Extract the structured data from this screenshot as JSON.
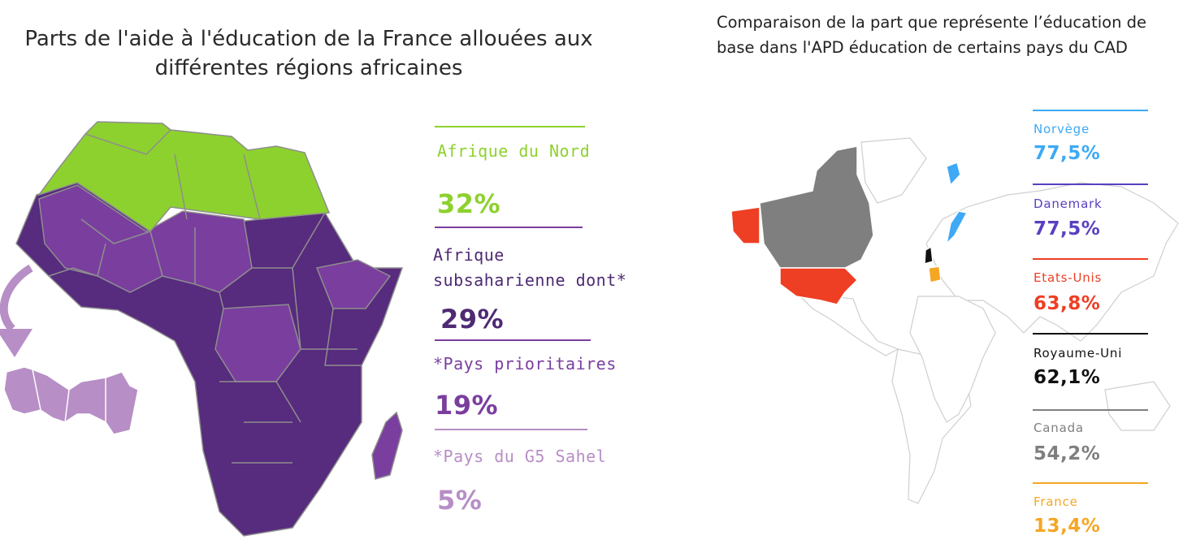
{
  "africa": {
    "title_line1": "Parts de l'aide à l'éducation de la France allouées aux",
    "title_line2": "différentes régions africaines",
    "colors": {
      "north": "#8dd12e",
      "subsaharan": "#572b7d",
      "priority": "#7a3e9f",
      "sahel": "#b78ec6",
      "border": "#8e8e8e"
    },
    "legend": [
      {
        "label_line1": "Afrique du Nord",
        "label_line2": "",
        "value": "32%",
        "color": "#8dd12e"
      },
      {
        "label_line1": "Afrique",
        "label_line2": "subsaharienne dont*",
        "value": "29%",
        "color": "#4e2a73"
      },
      {
        "label_line1": "*Pays prioritaires",
        "label_line2": "",
        "value": "19%",
        "color": "#7a3e9f"
      },
      {
        "label_line1": "*Pays du G5 Sahel",
        "label_line2": "",
        "value": "5%",
        "color": "#b78ec6"
      }
    ]
  },
  "cad": {
    "title_line1": "Comparaison de la part que représente l’éducation de",
    "title_line2": "base dans l'APD éducation de certains pays du CAD",
    "items": [
      {
        "country": "Norvège",
        "value": "77,5%",
        "color": "#3ea9f5"
      },
      {
        "country": "Danemark",
        "value": "77,5%",
        "color": "#5a3fc0"
      },
      {
        "country": "Etats-Unis",
        "value": "63,8%",
        "color": "#ee3e23"
      },
      {
        "country": "Royaume-Uni",
        "value": "62,1%",
        "color": "#111111"
      },
      {
        "country": "Canada",
        "value": "54,2%",
        "color": "#7f7f7f"
      },
      {
        "country": "France",
        "value": "13,4%",
        "color": "#f5a623"
      }
    ],
    "map_colors": {
      "land": "#ffffff",
      "border": "#cfcfcf",
      "canada": "#7f7f7f",
      "usa": "#ee3e23",
      "norway": "#3ea9f5",
      "uk": "#111111",
      "france": "#f5a623",
      "greenland": "#ffffff"
    }
  }
}
